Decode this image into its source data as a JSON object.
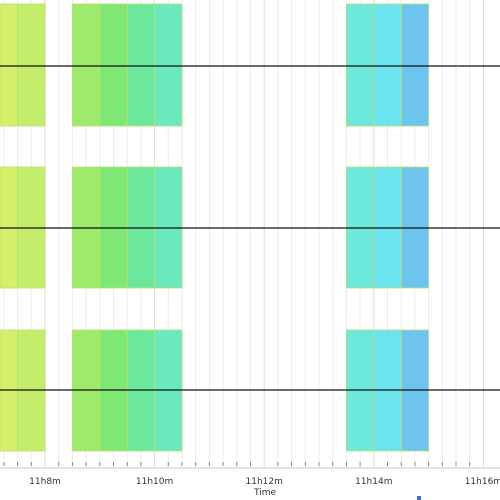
{
  "chart_data": {
    "type": "timeline",
    "xlabel": "Time",
    "x_unit": "minutes after 11:00",
    "xlim": [
      7.15,
      16.2
    ],
    "ticks": [
      {
        "value": 8,
        "label": "11h8m"
      },
      {
        "value": 10,
        "label": "11h10m"
      },
      {
        "value": 12,
        "label": "11h12m"
      },
      {
        "value": 14,
        "label": "11h14m"
      },
      {
        "value": 16,
        "label": "11h16m"
      }
    ],
    "minor_tick_step": 0.25,
    "grid": true,
    "tracks": [
      {
        "marker": "-"
      },
      {
        "marker": "-"
      },
      {
        "marker": "-"
      }
    ],
    "segments": [
      {
        "start": 7.15,
        "end": 7.5,
        "color": "#d7ee6c"
      },
      {
        "start": 7.5,
        "end": 8.0,
        "color": "#c3ee6c"
      },
      {
        "start": 8.5,
        "end": 9.0,
        "color": "#9eea6d"
      },
      {
        "start": 9.0,
        "end": 9.5,
        "color": "#7fe874"
      },
      {
        "start": 9.5,
        "end": 10.0,
        "color": "#6ce89c"
      },
      {
        "start": 10.0,
        "end": 10.5,
        "color": "#6ce8bf"
      },
      {
        "start": 13.5,
        "end": 14.0,
        "color": "#6ce8dc"
      },
      {
        "start": 14.0,
        "end": 14.5,
        "color": "#6ce4ef"
      },
      {
        "start": 14.5,
        "end": 15.0,
        "color": "#6cc4ef"
      }
    ]
  }
}
